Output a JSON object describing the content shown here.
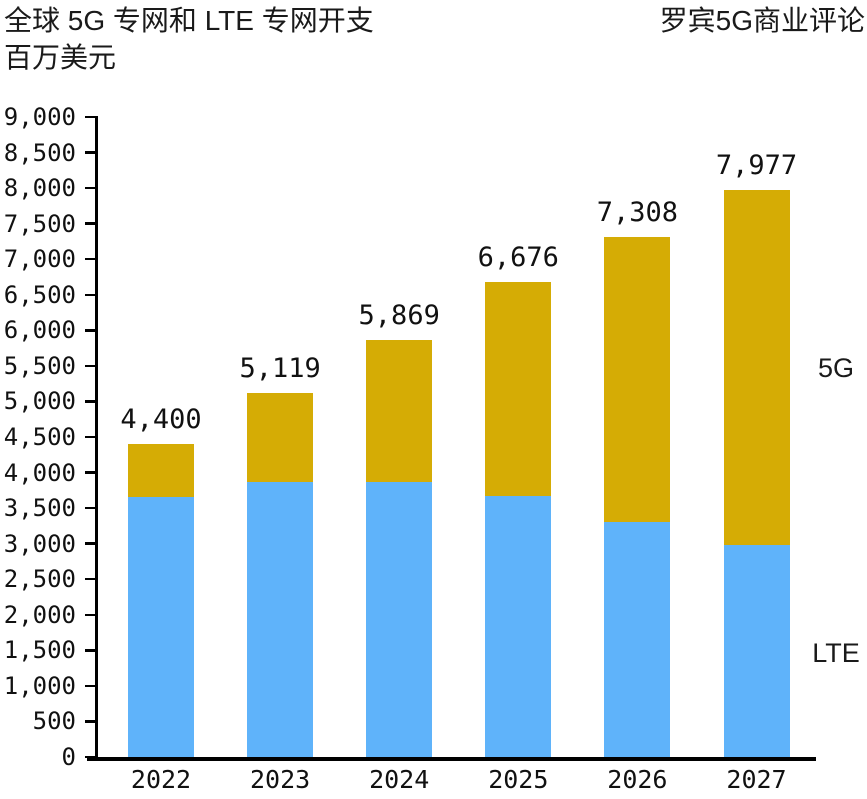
{
  "header": {
    "title_line1": "全球 5G 专网和 LTE 专网开支",
    "title_line2": "百万美元",
    "brand": "罗宾5G商业评论"
  },
  "side_labels": {
    "top": "5G",
    "bottom": "LTE"
  },
  "chart_data": {
    "type": "bar",
    "stacked": true,
    "title": "全球 5G 专网和 LTE 专网开支",
    "subtitle": "百万美元",
    "unit": "百万美元",
    "categories": [
      "2022",
      "2023",
      "2024",
      "2025",
      "2026",
      "2027"
    ],
    "series": [
      {
        "name": "LTE",
        "color": "#5FB3FA",
        "values": [
          3650,
          3869,
          3869,
          3676,
          3308,
          2977
        ]
      },
      {
        "name": "5G",
        "color": "#D5AC05",
        "values": [
          750,
          1250,
          2000,
          3000,
          4000,
          5000
        ]
      }
    ],
    "totals": [
      4400,
      5119,
      5869,
      6676,
      7308,
      7977
    ],
    "total_labels": [
      "4,400",
      "5,119",
      "5,869",
      "6,676",
      "7,308",
      "7,977"
    ],
    "ylim": [
      0,
      9000
    ],
    "ytick_step": 500,
    "ytick_labels": [
      "0",
      "500",
      "1,000",
      "1,500",
      "2,000",
      "2,500",
      "3,000",
      "3,500",
      "4,000",
      "4,500",
      "5,000",
      "5,500",
      "6,000",
      "6,500",
      "7,000",
      "7,500",
      "8,000",
      "8,500",
      "9,000"
    ],
    "grid": false,
    "legend_position": "right-inline",
    "axis_color": "#000000",
    "label_color": "#111111"
  }
}
